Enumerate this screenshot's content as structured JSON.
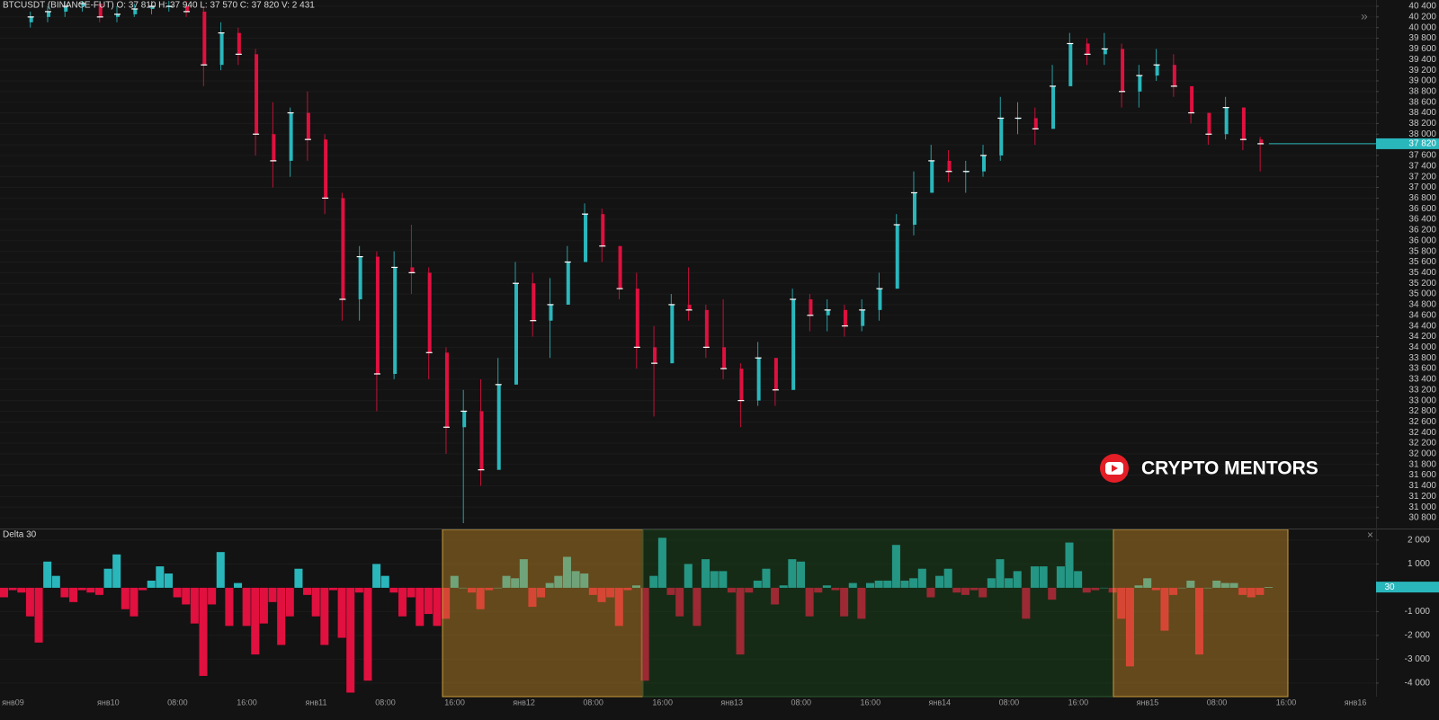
{
  "watermark": "CRYPTO MENTORS",
  "chart_data": [
    {
      "type": "candlestick",
      "title": "BTCUSDT (BINANCE-FUT) O: 37 810 H: 37 940 L: 37 570 C: 37 820 V: 2 431",
      "up_color": "#2ab7bc",
      "down_color": "#e0103f",
      "open": [
        40100,
        40200,
        40300,
        40400,
        40450,
        40200,
        40250,
        40350,
        40400,
        40400,
        40300,
        39300,
        39900,
        39500,
        38000,
        37500,
        38400,
        37900,
        36800,
        34900,
        35700,
        33500,
        35500,
        35400,
        33900,
        32500,
        32800,
        31700,
        33300,
        35200,
        34500,
        34800,
        35600,
        36500,
        35900,
        35100,
        34000,
        33700,
        34800,
        34700,
        34000,
        33600,
        33000,
        33800,
        33200,
        34900,
        34600,
        34700,
        34400,
        34700,
        35100,
        36300,
        36900,
        37500,
        37300,
        37300,
        37600,
        38300,
        38300,
        38100,
        38900,
        39700,
        39500,
        39600,
        38800,
        39100,
        39300,
        38900,
        38400,
        38000,
        38500,
        37900
      ],
      "high": [
        40300,
        40400,
        40500,
        40500,
        40500,
        40400,
        40450,
        40500,
        40500,
        40500,
        40400,
        40100,
        40000,
        39600,
        38600,
        38500,
        38800,
        38000,
        36900,
        35900,
        35800,
        35800,
        36300,
        35500,
        34000,
        33200,
        33400,
        33800,
        35600,
        35400,
        35300,
        35900,
        36700,
        36600,
        35900,
        35400,
        34400,
        35000,
        35500,
        34800,
        34900,
        33700,
        34100,
        33800,
        35100,
        35000,
        34900,
        34800,
        34900,
        35400,
        36500,
        37300,
        37800,
        37700,
        37500,
        37800,
        38700,
        38600,
        38500,
        39300,
        39900,
        39800,
        39900,
        39700,
        39300,
        39600,
        39500,
        38900,
        38400,
        38700,
        38500,
        37950
      ],
      "low": [
        40000,
        40100,
        40200,
        40300,
        40100,
        40100,
        40200,
        40250,
        40300,
        40200,
        38900,
        39200,
        39300,
        37600,
        37000,
        37200,
        37500,
        36500,
        34500,
        34500,
        32800,
        33400,
        35000,
        33400,
        32000,
        30700,
        31400,
        31700,
        33300,
        34200,
        33800,
        34800,
        35600,
        35600,
        34900,
        33600,
        32700,
        33700,
        34500,
        33800,
        33400,
        32500,
        32900,
        32900,
        33200,
        34300,
        34300,
        34200,
        34300,
        34500,
        35100,
        36100,
        36900,
        37100,
        36900,
        37200,
        37500,
        38000,
        37800,
        38100,
        38900,
        39300,
        39300,
        38500,
        38500,
        39000,
        38700,
        38200,
        37800,
        37900,
        37700,
        37300
      ],
      "close": [
        40200,
        40300,
        40400,
        40450,
        40200,
        40250,
        40350,
        40400,
        40400,
        40300,
        39300,
        39900,
        39500,
        38000,
        37500,
        38400,
        37900,
        36800,
        34900,
        35700,
        33500,
        35500,
        35400,
        33900,
        32500,
        32800,
        31700,
        33300,
        35200,
        34500,
        34800,
        35600,
        36500,
        35900,
        35100,
        34000,
        33700,
        34800,
        34700,
        34000,
        33600,
        33000,
        33800,
        33200,
        34900,
        34600,
        34700,
        34400,
        34700,
        35100,
        36300,
        36900,
        37500,
        37300,
        37300,
        37600,
        38300,
        38300,
        38100,
        38900,
        39700,
        39500,
        39600,
        38800,
        39100,
        39300,
        38900,
        38400,
        38000,
        38500,
        37900,
        37820
      ],
      "last_price_label": "37 820",
      "ylim": [
        30598,
        40518
      ],
      "yticks": [
        {
          "value": 30800,
          "label": "30 800"
        },
        {
          "value": 31000,
          "label": "31 000"
        },
        {
          "value": 31200,
          "label": "31 200"
        },
        {
          "value": 31400,
          "label": "31 400"
        },
        {
          "value": 31600,
          "label": "31 600"
        },
        {
          "value": 31800,
          "label": "31 800"
        },
        {
          "value": 32000,
          "label": "32 000"
        },
        {
          "value": 32200,
          "label": "32 200"
        },
        {
          "value": 32400,
          "label": "32 400"
        },
        {
          "value": 32600,
          "label": "32 600"
        },
        {
          "value": 32800,
          "label": "32 800"
        },
        {
          "value": 33000,
          "label": "33 000"
        },
        {
          "value": 33200,
          "label": "33 200"
        },
        {
          "value": 33400,
          "label": "33 400"
        },
        {
          "value": 33600,
          "label": "33 600"
        },
        {
          "value": 33800,
          "label": "33 800"
        },
        {
          "value": 34000,
          "label": "34 000"
        },
        {
          "value": 34200,
          "label": "34 200"
        },
        {
          "value": 34400,
          "label": "34 400"
        },
        {
          "value": 34600,
          "label": "34 600"
        },
        {
          "value": 34800,
          "label": "34 800"
        },
        {
          "value": 35000,
          "label": "35 000"
        },
        {
          "value": 35200,
          "label": "35 200"
        },
        {
          "value": 35400,
          "label": "35 400"
        },
        {
          "value": 35600,
          "label": "35 600"
        },
        {
          "value": 35800,
          "label": "35 800"
        },
        {
          "value": 36000,
          "label": "36 000"
        },
        {
          "value": 36200,
          "label": "36 200"
        },
        {
          "value": 36400,
          "label": "36 400"
        },
        {
          "value": 36600,
          "label": "36 600"
        },
        {
          "value": 36800,
          "label": "36 800"
        },
        {
          "value": 37000,
          "label": "37 000"
        },
        {
          "value": 37200,
          "label": "37 200"
        },
        {
          "value": 37400,
          "label": "37 400"
        },
        {
          "value": 37600,
          "label": "37 600"
        },
        {
          "value": 37800,
          "label": "37 800"
        },
        {
          "value": 38000,
          "label": "38 000"
        },
        {
          "value": 38200,
          "label": "38 200"
        },
        {
          "value": 38400,
          "label": "38 400"
        },
        {
          "value": 38600,
          "label": "38 600"
        },
        {
          "value": 38800,
          "label": "38 800"
        },
        {
          "value": 39000,
          "label": "39 000"
        },
        {
          "value": 39200,
          "label": "39 200"
        },
        {
          "value": 39400,
          "label": "39 400"
        },
        {
          "value": 39600,
          "label": "39 600"
        },
        {
          "value": 39800,
          "label": "39 800"
        },
        {
          "value": 40000,
          "label": "40 000"
        },
        {
          "value": 40200,
          "label": "40 200"
        },
        {
          "value": 40400,
          "label": "40 400"
        }
      ],
      "grid": true
    },
    {
      "type": "bar",
      "title": "Delta 30",
      "up_color": "#2ab7bc",
      "down_color": "#e0103f",
      "categories": [
        null,
        "янв09",
        null,
        null,
        null,
        null,
        null,
        null,
        null,
        null,
        null,
        null,
        "янв10",
        null,
        null,
        null,
        null,
        null,
        null,
        null,
        "08:00",
        null,
        null,
        null,
        null,
        null,
        null,
        null,
        "16:00",
        null,
        null,
        null,
        null,
        null,
        null,
        null,
        "янв11",
        null,
        null,
        null,
        null,
        null,
        null,
        null,
        "08:00",
        null,
        null,
        null,
        null,
        null,
        null,
        null,
        "16:00",
        null,
        null,
        null,
        null,
        null,
        null,
        null,
        "янв12",
        null,
        null,
        null,
        null,
        null,
        null,
        null,
        "08:00",
        null,
        null,
        null,
        null,
        null,
        null,
        null,
        "16:00",
        null,
        null,
        null,
        null,
        null,
        null,
        null,
        "янв13",
        null,
        null,
        null,
        null,
        null,
        null,
        null,
        "08:00",
        null,
        null,
        null,
        null,
        null,
        null,
        null,
        "16:00",
        null,
        null,
        null,
        null,
        null,
        null,
        null,
        "янв14",
        null,
        null,
        null,
        null,
        null,
        null,
        null,
        "08:00",
        null,
        null,
        null,
        null,
        null,
        null,
        null,
        "16:00",
        null,
        null,
        null,
        null,
        null,
        null,
        null,
        "янв15",
        null,
        null,
        null,
        null,
        null,
        null,
        null,
        "08:00",
        null,
        null,
        null,
        null,
        null,
        null,
        null,
        "16:00",
        null,
        null,
        null,
        null,
        null,
        null,
        null,
        "янв16",
        null
      ],
      "values": [
        -400,
        -100,
        -200,
        -1200,
        -2300,
        1100,
        500,
        -400,
        -600,
        -100,
        -200,
        -300,
        800,
        1400,
        -900,
        -1200,
        -100,
        300,
        900,
        600,
        -400,
        -700,
        -1500,
        -3700,
        -700,
        1500,
        -1600,
        200,
        -1600,
        -2800,
        -1500,
        -600,
        -2400,
        -1200,
        800,
        -300,
        -1200,
        -2400,
        -100,
        -2100,
        -4400,
        -200,
        -3900,
        1000,
        500,
        -200,
        -1200,
        -400,
        -1600,
        -1100,
        -1600,
        -1300,
        500,
        0,
        -200,
        -900,
        -100,
        0,
        500,
        400,
        1200,
        -800,
        -400,
        200,
        500,
        1300,
        700,
        600,
        -300,
        -600,
        -400,
        -1600,
        -100,
        100,
        -3900,
        500,
        2100,
        -300,
        -1200,
        1000,
        -1600,
        1200,
        700,
        700,
        -200,
        -2800,
        -200,
        300,
        800,
        -700,
        100,
        1200,
        1100,
        -1200,
        -200,
        100,
        -100,
        -1200,
        200,
        -1300,
        200,
        300,
        300,
        1800,
        300,
        400,
        800,
        -400,
        500,
        800,
        -200,
        -300,
        -100,
        -400,
        400,
        1200,
        400,
        700,
        -1300,
        900,
        900,
        -500,
        900,
        1900,
        700,
        -200,
        -100,
        0,
        -200,
        -1300,
        -3300,
        100,
        400,
        -100,
        -1800,
        -300,
        0,
        300,
        -2800,
        0,
        300,
        200,
        200,
        -300,
        -400,
        -300,
        30,
        null,
        null,
        null,
        null,
        null,
        null,
        null,
        null,
        null,
        null,
        null
      ],
      "ylim": [
        -4570,
        2450
      ],
      "yticks": [
        {
          "value": 2000,
          "label": "2 000"
        },
        {
          "value": 1000,
          "label": "1 000"
        },
        {
          "value": -1000,
          "label": "-1 000"
        },
        {
          "value": -2000,
          "label": "-2 000"
        },
        {
          "value": -3000,
          "label": "-3 000"
        },
        {
          "value": -4000,
          "label": "-4 000"
        }
      ]
    }
  ]
}
